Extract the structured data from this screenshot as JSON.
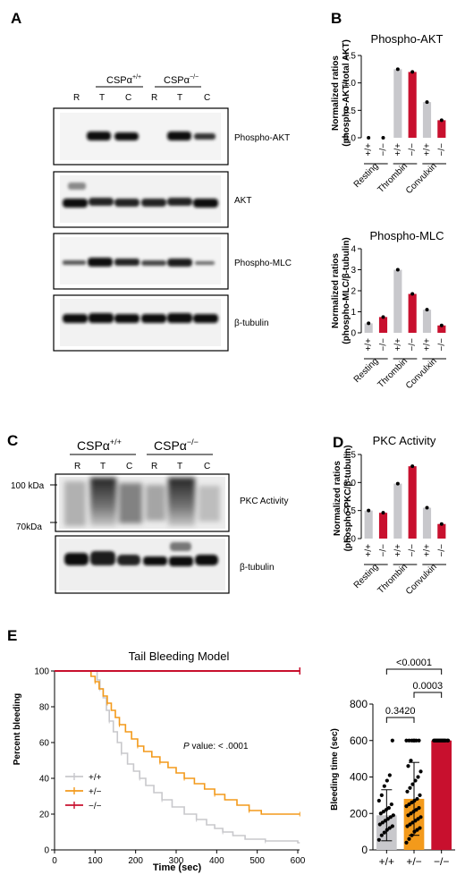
{
  "panel_letters": [
    "A",
    "B",
    "C",
    "D",
    "E"
  ],
  "panelA": {
    "groups": [
      {
        "base": "CSPα",
        "sup": "+/+"
      },
      {
        "base": "CSPα",
        "sup": "−/−"
      }
    ],
    "lanes": [
      "R",
      "T",
      "C",
      "R",
      "T",
      "C"
    ],
    "blots": [
      "Phospho-AKT",
      "AKT",
      "Phospho-MLC",
      "β-tubulin"
    ]
  },
  "panelC": {
    "groups": [
      {
        "base": "CSPα",
        "sup": "+/+"
      },
      {
        "base": "CSPα",
        "sup": "−/−"
      }
    ],
    "lanes": [
      "R",
      "T",
      "C",
      "R",
      "T",
      "C"
    ],
    "markers": [
      "100 kDa",
      "70kDa"
    ],
    "blots": [
      "PKC Activity",
      "β-tubulin"
    ]
  },
  "genotype_labels": [
    "+/+",
    "−/−"
  ],
  "condition_labels": [
    "Resting",
    "Thrombin",
    "Convulxin"
  ],
  "colors": {
    "wt": "#c8c8cc",
    "ko": "#c8102e",
    "het": "#f39a1b",
    "axis": "#000000"
  },
  "chart_data": [
    {
      "id": "phospho-akt",
      "type": "bar",
      "title": "Phospho-AKT",
      "ylabel_lines": [
        "Normalized ratios",
        "(phospho-AKT/total AKT)"
      ],
      "categories": [
        "Resting",
        "Thrombin",
        "Convulxin"
      ],
      "series": [
        {
          "name": "+/+",
          "values": [
            0.0,
            1.25,
            0.65
          ]
        },
        {
          "name": "−/−",
          "values": [
            0.0,
            1.2,
            0.32
          ]
        }
      ],
      "ylim": [
        0,
        1.5
      ],
      "yticks": [
        "0.0",
        "0.5",
        "1.0",
        "1.5"
      ],
      "ytick_values": [
        0,
        0.5,
        1.0,
        1.5
      ]
    },
    {
      "id": "phospho-mlc",
      "type": "bar",
      "title": "Phospho-MLC",
      "ylabel_lines": [
        "Normalized ratios",
        "(phospho-MLC/β-tubulin)"
      ],
      "categories": [
        "Resting",
        "Thrombin",
        "Convulxin"
      ],
      "series": [
        {
          "name": "+/+",
          "values": [
            0.45,
            3.0,
            1.1
          ]
        },
        {
          "name": "−/−",
          "values": [
            0.75,
            1.85,
            0.35
          ]
        }
      ],
      "ylim": [
        0,
        4
      ],
      "yticks": [
        "0",
        "1",
        "2",
        "3",
        "4"
      ],
      "ytick_values": [
        0,
        1,
        2,
        3,
        4
      ]
    },
    {
      "id": "pkc-activity",
      "type": "bar",
      "title": "PKC Activity",
      "ylabel_lines": [
        "Normalized ratios",
        "(phospho-PKC/β-tubulin)"
      ],
      "categories": [
        "Resting",
        "Thrombin",
        "Convulxin"
      ],
      "series": [
        {
          "name": "+/+",
          "values": [
            0.5,
            0.98,
            0.55
          ]
        },
        {
          "name": "−/−",
          "values": [
            0.46,
            1.29,
            0.26
          ]
        }
      ],
      "ylim": [
        0,
        1.5
      ],
      "yticks": [
        "0.0",
        "0.5",
        "1.0",
        "1.5"
      ],
      "ytick_values": [
        0,
        0.5,
        1.0,
        1.5
      ]
    },
    {
      "id": "tail-bleeding",
      "type": "line",
      "title": "Tail Bleeding Model",
      "xlabel": "Time (sec)",
      "ylabel": "Percent bleeding",
      "xlim": [
        0,
        600
      ],
      "ylim": [
        0,
        100
      ],
      "xticks": [
        "0",
        "100",
        "200",
        "300",
        "400",
        "500",
        "600"
      ],
      "xtick_values": [
        0,
        100,
        200,
        300,
        400,
        500,
        600
      ],
      "yticks": [
        "0",
        "20",
        "40",
        "60",
        "80",
        "100"
      ],
      "ytick_values": [
        0,
        20,
        40,
        60,
        80,
        100
      ],
      "annotation": {
        "italic": "P",
        "rest": " value: < .0001"
      },
      "series": [
        {
          "name": "+/+",
          "x": [
            0,
            95,
            105,
            112,
            120,
            128,
            135,
            145,
            155,
            165,
            180,
            195,
            210,
            225,
            245,
            265,
            290,
            320,
            350,
            375,
            395,
            415,
            440,
            470,
            520,
            600,
            605
          ],
          "y": [
            100,
            100,
            95,
            90,
            85,
            78,
            72,
            66,
            60,
            54,
            48,
            44,
            40,
            36,
            32,
            28,
            24,
            20,
            17,
            14,
            12,
            10,
            8,
            6,
            5,
            4,
            4
          ]
        },
        {
          "name": "+/−",
          "x": [
            0,
            80,
            90,
            100,
            110,
            120,
            130,
            140,
            150,
            160,
            175,
            190,
            205,
            220,
            240,
            260,
            280,
            300,
            320,
            345,
            370,
            395,
            420,
            450,
            480,
            510,
            600,
            605
          ],
          "y": [
            100,
            100,
            97,
            94,
            90,
            86,
            82,
            78,
            74,
            70,
            66,
            62,
            58,
            55,
            52,
            49,
            46,
            43,
            40,
            37,
            34,
            31,
            28,
            25,
            22,
            20,
            20,
            20
          ]
        },
        {
          "name": "−/−",
          "x": [
            0,
            605
          ],
          "y": [
            100,
            100
          ]
        }
      ]
    },
    {
      "id": "bleeding-time",
      "type": "bar",
      "ylabel": "Bleeding time (sec)",
      "categories": [
        "+/+",
        "+/−",
        "−/−"
      ],
      "values": [
        190,
        280,
        600
      ],
      "errors": [
        140,
        200,
        0
      ],
      "ylim": [
        0,
        800
      ],
      "yticks": [
        "0",
        "200",
        "400",
        "600",
        "800"
      ],
      "ytick_values": [
        0,
        200,
        400,
        600,
        800
      ],
      "points": [
        [
          55,
          80,
          95,
          110,
          120,
          130,
          140,
          150,
          160,
          170,
          180,
          190,
          200,
          210,
          220,
          230,
          250,
          270,
          300,
          350,
          380,
          410,
          600
        ],
        [
          40,
          60,
          80,
          100,
          110,
          120,
          130,
          140,
          150,
          160,
          170,
          180,
          190,
          200,
          210,
          220,
          230,
          240,
          250,
          260,
          270,
          280,
          300,
          320,
          340,
          360,
          380,
          400,
          430,
          460,
          490,
          600,
          600,
          600,
          600,
          600,
          600,
          600
        ],
        [
          600,
          600,
          600,
          600,
          600,
          600,
          600,
          600,
          600,
          600,
          600,
          600,
          600,
          600,
          600,
          600
        ]
      ],
      "comparisons": [
        {
          "label": "0.3420",
          "from": 0,
          "to": 1
        },
        {
          "label": "0.0003",
          "from": 1,
          "to": 2
        },
        {
          "label": "<0.0001",
          "from": 0,
          "to": 2
        }
      ]
    }
  ]
}
